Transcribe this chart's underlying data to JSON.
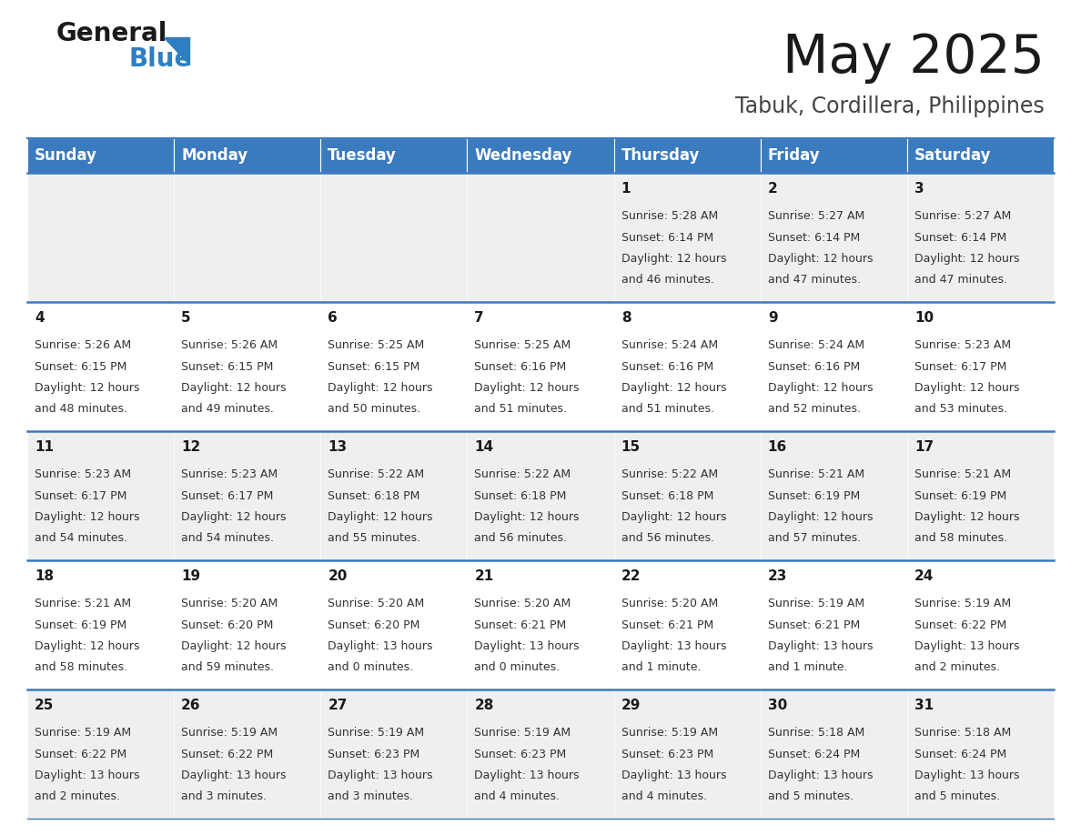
{
  "title": "May 2025",
  "subtitle": "Tabuk, Cordillera, Philippines",
  "header_color": "#3a7abf",
  "header_text_color": "#ffffff",
  "background_color": "#ffffff",
  "cell_bg_even": "#efefef",
  "cell_bg_odd": "#ffffff",
  "day_names": [
    "Sunday",
    "Monday",
    "Tuesday",
    "Wednesday",
    "Thursday",
    "Friday",
    "Saturday"
  ],
  "days": [
    {
      "day": 1,
      "col": 4,
      "row": 0,
      "sunrise": "5:28 AM",
      "sunset": "6:14 PM",
      "daylight": "12 hours and 46 minutes."
    },
    {
      "day": 2,
      "col": 5,
      "row": 0,
      "sunrise": "5:27 AM",
      "sunset": "6:14 PM",
      "daylight": "12 hours and 47 minutes."
    },
    {
      "day": 3,
      "col": 6,
      "row": 0,
      "sunrise": "5:27 AM",
      "sunset": "6:14 PM",
      "daylight": "12 hours and 47 minutes."
    },
    {
      "day": 4,
      "col": 0,
      "row": 1,
      "sunrise": "5:26 AM",
      "sunset": "6:15 PM",
      "daylight": "12 hours and 48 minutes."
    },
    {
      "day": 5,
      "col": 1,
      "row": 1,
      "sunrise": "5:26 AM",
      "sunset": "6:15 PM",
      "daylight": "12 hours and 49 minutes."
    },
    {
      "day": 6,
      "col": 2,
      "row": 1,
      "sunrise": "5:25 AM",
      "sunset": "6:15 PM",
      "daylight": "12 hours and 50 minutes."
    },
    {
      "day": 7,
      "col": 3,
      "row": 1,
      "sunrise": "5:25 AM",
      "sunset": "6:16 PM",
      "daylight": "12 hours and 51 minutes."
    },
    {
      "day": 8,
      "col": 4,
      "row": 1,
      "sunrise": "5:24 AM",
      "sunset": "6:16 PM",
      "daylight": "12 hours and 51 minutes."
    },
    {
      "day": 9,
      "col": 5,
      "row": 1,
      "sunrise": "5:24 AM",
      "sunset": "6:16 PM",
      "daylight": "12 hours and 52 minutes."
    },
    {
      "day": 10,
      "col": 6,
      "row": 1,
      "sunrise": "5:23 AM",
      "sunset": "6:17 PM",
      "daylight": "12 hours and 53 minutes."
    },
    {
      "day": 11,
      "col": 0,
      "row": 2,
      "sunrise": "5:23 AM",
      "sunset": "6:17 PM",
      "daylight": "12 hours and 54 minutes."
    },
    {
      "day": 12,
      "col": 1,
      "row": 2,
      "sunrise": "5:23 AM",
      "sunset": "6:17 PM",
      "daylight": "12 hours and 54 minutes."
    },
    {
      "day": 13,
      "col": 2,
      "row": 2,
      "sunrise": "5:22 AM",
      "sunset": "6:18 PM",
      "daylight": "12 hours and 55 minutes."
    },
    {
      "day": 14,
      "col": 3,
      "row": 2,
      "sunrise": "5:22 AM",
      "sunset": "6:18 PM",
      "daylight": "12 hours and 56 minutes."
    },
    {
      "day": 15,
      "col": 4,
      "row": 2,
      "sunrise": "5:22 AM",
      "sunset": "6:18 PM",
      "daylight": "12 hours and 56 minutes."
    },
    {
      "day": 16,
      "col": 5,
      "row": 2,
      "sunrise": "5:21 AM",
      "sunset": "6:19 PM",
      "daylight": "12 hours and 57 minutes."
    },
    {
      "day": 17,
      "col": 6,
      "row": 2,
      "sunrise": "5:21 AM",
      "sunset": "6:19 PM",
      "daylight": "12 hours and 58 minutes."
    },
    {
      "day": 18,
      "col": 0,
      "row": 3,
      "sunrise": "5:21 AM",
      "sunset": "6:19 PM",
      "daylight": "12 hours and 58 minutes."
    },
    {
      "day": 19,
      "col": 1,
      "row": 3,
      "sunrise": "5:20 AM",
      "sunset": "6:20 PM",
      "daylight": "12 hours and 59 minutes."
    },
    {
      "day": 20,
      "col": 2,
      "row": 3,
      "sunrise": "5:20 AM",
      "sunset": "6:20 PM",
      "daylight": "13 hours and 0 minutes."
    },
    {
      "day": 21,
      "col": 3,
      "row": 3,
      "sunrise": "5:20 AM",
      "sunset": "6:21 PM",
      "daylight": "13 hours and 0 minutes."
    },
    {
      "day": 22,
      "col": 4,
      "row": 3,
      "sunrise": "5:20 AM",
      "sunset": "6:21 PM",
      "daylight": "13 hours and 1 minute."
    },
    {
      "day": 23,
      "col": 5,
      "row": 3,
      "sunrise": "5:19 AM",
      "sunset": "6:21 PM",
      "daylight": "13 hours and 1 minute."
    },
    {
      "day": 24,
      "col": 6,
      "row": 3,
      "sunrise": "5:19 AM",
      "sunset": "6:22 PM",
      "daylight": "13 hours and 2 minutes."
    },
    {
      "day": 25,
      "col": 0,
      "row": 4,
      "sunrise": "5:19 AM",
      "sunset": "6:22 PM",
      "daylight": "13 hours and 2 minutes."
    },
    {
      "day": 26,
      "col": 1,
      "row": 4,
      "sunrise": "5:19 AM",
      "sunset": "6:22 PM",
      "daylight": "13 hours and 3 minutes."
    },
    {
      "day": 27,
      "col": 2,
      "row": 4,
      "sunrise": "5:19 AM",
      "sunset": "6:23 PM",
      "daylight": "13 hours and 3 minutes."
    },
    {
      "day": 28,
      "col": 3,
      "row": 4,
      "sunrise": "5:19 AM",
      "sunset": "6:23 PM",
      "daylight": "13 hours and 4 minutes."
    },
    {
      "day": 29,
      "col": 4,
      "row": 4,
      "sunrise": "5:19 AM",
      "sunset": "6:23 PM",
      "daylight": "13 hours and 4 minutes."
    },
    {
      "day": 30,
      "col": 5,
      "row": 4,
      "sunrise": "5:18 AM",
      "sunset": "6:24 PM",
      "daylight": "13 hours and 5 minutes."
    },
    {
      "day": 31,
      "col": 6,
      "row": 4,
      "sunrise": "5:18 AM",
      "sunset": "6:24 PM",
      "daylight": "13 hours and 5 minutes."
    }
  ],
  "num_rows": 5,
  "num_cols": 7,
  "title_fontsize": 42,
  "subtitle_fontsize": 17,
  "header_fontsize": 12,
  "day_num_fontsize": 11,
  "cell_fontsize": 9
}
